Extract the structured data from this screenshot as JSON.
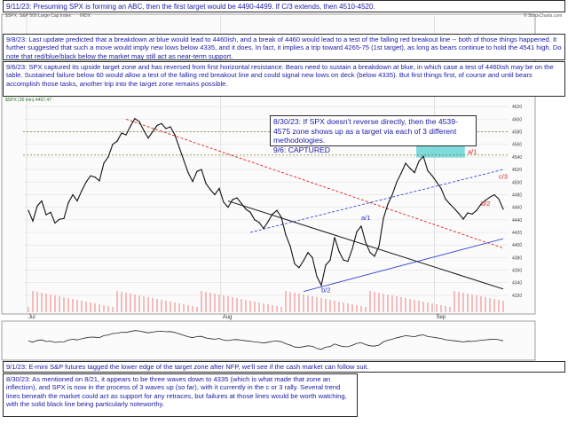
{
  "notes": {
    "top": "9/11/23:  Presuming SPX is forming an ABC, then the first target would be 4490-4499.  If C/3 extends, then 4510-4520.",
    "note_9_8": "9/8/23:  Last update predicted that a breakdown at blue would lead to 4460ish, and a break of 4460 would lead to a test of the falling red breakout line -- both of those things happened.  It further suggested that such a move would imply new lows below 4335, and it does.  In fact, it implies a trip toward 4265-75 (1st target), as long as bears continue to hold the 4541 high.  Do note that red/blue/black below the market may still act as near-term support.",
    "note_9_6": "9/6/23:  SPX captured its upside target zone and has reversed from first horizontal resistance.  Bears need to sustain a breakdown at blue, in which case a test of 4460ish may be on the table.  Sustained failure below 60 would allow a test of the falling red breakout line and could signal new lows on deck (below 4335).  But first things first, of course and until bears accomplish those tasks, another trip into the target zone remains possible.",
    "note_8_30": "8/30/23:  If SPX doesn't reverse directly, then the 4539-4575 zone shows up as a target via each of 3 different methodologies.\n9/6:  CAPTURED",
    "note_9_1": "9/1/23:  E-mini S&P futures tagged the lower edge of the target zone after NFP, we'll see if the cash market can follow suit.",
    "bottom": "8/30/23:  As mentioned on 8/21, it appears to be three waves down to 4335 (which is what made that zone an inflection), and SPX is now in the process of 3 waves up (so far), with it currently in the c or 3 rally.  Several trend lines beneath the market could act as support for any retraces, but failures at those lines would be worth watching, with the solid black line being particularly noteworthy."
  },
  "header": {
    "symbol": "$SPX",
    "name": "S&P 500 Large Cap Index",
    "exchange": "INDX",
    "watermark": "© StockCharts.com",
    "ma_legend": "$SPX (30 min) 4457.47"
  },
  "chart_data": {
    "type": "line",
    "title": "",
    "xlabel": "",
    "ylabel": "",
    "x_tick_labels": [
      "Jul",
      "Aug",
      "Sep"
    ],
    "ylim": [
      4310,
      4640
    ],
    "y_ticks": [
      4320,
      4340,
      4360,
      4380,
      4400,
      4420,
      4440,
      4460,
      4480,
      4500,
      4520,
      4540,
      4560,
      4580,
      4600,
      4620
    ],
    "target_zone": [
      4539,
      4575
    ],
    "series": [
      {
        "values": [
          4455,
          4438,
          4462,
          4470,
          4448,
          4452,
          4435,
          4441,
          4442,
          4467,
          4480,
          4470,
          4486,
          4500,
          4510,
          4508,
          4502,
          4530,
          4540,
          4560,
          4565,
          4578,
          4575,
          4589,
          4601,
          4596,
          4582,
          4570,
          4580,
          4590,
          4593,
          4585,
          4588,
          4575,
          4555,
          4535,
          4515,
          4501,
          4517,
          4520,
          4498,
          4488,
          4480,
          4490,
          4468,
          4460,
          4472,
          4475,
          4466,
          4457,
          4452,
          4440,
          4436,
          4426,
          4437,
          4449,
          4455,
          4444,
          4416,
          4398,
          4370,
          4364,
          4375,
          4388,
          4380,
          4350,
          4336,
          4368,
          4376,
          4412,
          4390,
          4376,
          4374,
          4394,
          4421,
          4430,
          4404,
          4388,
          4382,
          4398,
          4442,
          4465,
          4480,
          4500,
          4514,
          4530,
          4522,
          4515,
          4533,
          4541,
          4518,
          4510,
          4500,
          4490,
          4473,
          4465,
          4458,
          4450,
          4441,
          4451,
          4449,
          4455,
          4465,
          4471,
          4476,
          4480,
          4473,
          4457
        ]
      }
    ],
    "wave_labels": [
      "a/1",
      "b/2",
      "a/1",
      "b/2",
      "c/3"
    ]
  }
}
